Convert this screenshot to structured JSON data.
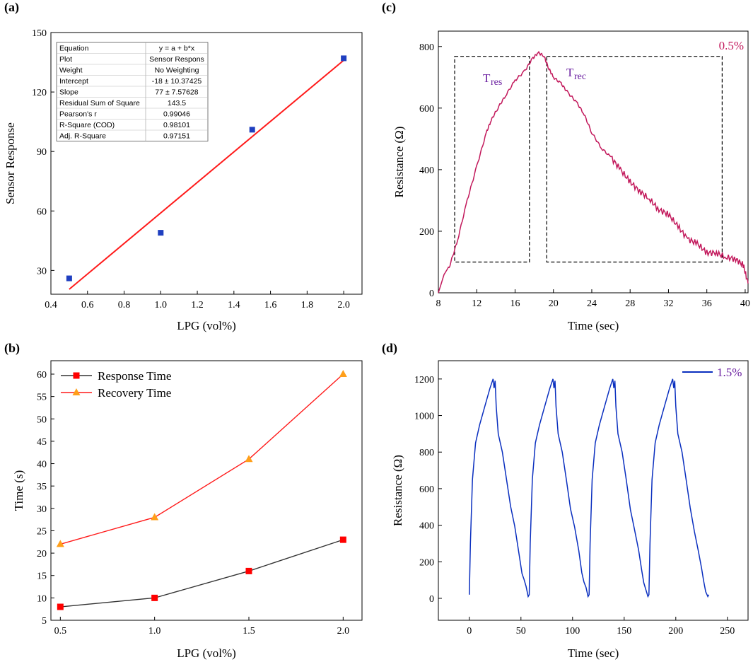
{
  "colors": {
    "blue": "#1f3fc0",
    "red": "#ff1a1a",
    "crimson": "#c2185b",
    "purple": "#6a1fa0",
    "navy": "#0a2fbf",
    "dark": "#333333",
    "orange": "#ff9f1a",
    "sq_red": "#ff0000"
  },
  "chart_data": [
    {
      "panel": "(a)",
      "type": "scatter",
      "xlabel": "LPG (vol%)",
      "ylabel": "Sensor Response",
      "xlim": [
        0.4,
        2.1
      ],
      "ylim": [
        18,
        150
      ],
      "xticks": [
        0.4,
        0.6,
        0.8,
        1.0,
        1.2,
        1.4,
        1.6,
        1.8,
        2.0
      ],
      "xtick_labels": [
        "0.4",
        "0.6",
        "0.8",
        "1.0",
        "1.2",
        "1.4",
        "1.6",
        "1.8",
        "2.0"
      ],
      "yticks": [
        30,
        60,
        90,
        120,
        150
      ],
      "ytick_labels": [
        "30",
        "60",
        "90",
        "120",
        "150"
      ],
      "points": {
        "x": [
          0.5,
          1.0,
          1.5,
          2.0
        ],
        "y": [
          26,
          49,
          101,
          137
        ]
      },
      "fit": {
        "intercept": -18,
        "slope": 77,
        "x": [
          0.5,
          2.0
        ]
      },
      "table": [
        [
          "Equation",
          "y = a + b*x"
        ],
        [
          "Plot",
          "Sensor Respons"
        ],
        [
          "Weight",
          "No Weighting"
        ],
        [
          "Intercept",
          "-18 ± 10.37425"
        ],
        [
          "Slope",
          "77 ± 7.57628"
        ],
        [
          "Residual Sum of Square",
          "143.5"
        ],
        [
          "Pearson's r",
          "0.99046"
        ],
        [
          "R-Square (COD)",
          "0.98101"
        ],
        [
          "Adj. R-Square",
          "0.97151"
        ]
      ]
    },
    {
      "panel": "(b)",
      "type": "line",
      "xlabel": "LPG (vol%)",
      "ylabel": "Time (s)",
      "xlim": [
        0.45,
        2.1
      ],
      "ylim": [
        5,
        63
      ],
      "xticks": [
        0.5,
        1.0,
        1.5,
        2.0
      ],
      "xtick_labels": [
        "0.5",
        "1.0",
        "1.5",
        "2.0"
      ],
      "yticks": [
        5,
        10,
        15,
        20,
        25,
        30,
        35,
        40,
        45,
        50,
        55,
        60
      ],
      "ytick_labels": [
        "5",
        "10",
        "15",
        "20",
        "25",
        "30",
        "35",
        "40",
        "45",
        "50",
        "55",
        "60"
      ],
      "x": [
        0.5,
        1.0,
        1.5,
        2.0
      ],
      "series": [
        {
          "name": "Response Time",
          "values": [
            8,
            10,
            16,
            23
          ]
        },
        {
          "name": "Recovery Time",
          "values": [
            22,
            28,
            41,
            60
          ]
        }
      ],
      "legend": "top-left"
    },
    {
      "panel": "(c)",
      "type": "line",
      "xlabel": "Time (sec)",
      "ylabel": "Resistance (Ω)",
      "xlim": [
        8,
        40.3
      ],
      "ylim": [
        0,
        850
      ],
      "xticks": [
        8,
        12,
        16,
        20,
        24,
        28,
        32,
        36,
        40
      ],
      "xtick_labels": [
        "8",
        "12",
        "16",
        "20",
        "24",
        "28",
        "32",
        "36",
        "40"
      ],
      "yticks": [
        0,
        200,
        400,
        600,
        800
      ],
      "ytick_labels": [
        "0",
        "200",
        "400",
        "600",
        "800"
      ],
      "legend_label": "0.5%",
      "annotations": {
        "t_res": "T",
        "t_res_sub": "res",
        "t_rec": "T",
        "t_rec_sub": "rec"
      },
      "series_points": [
        [
          8.0,
          0
        ],
        [
          8.6,
          60
        ],
        [
          9.2,
          90
        ],
        [
          10.0,
          170
        ],
        [
          11.0,
          300
        ],
        [
          12.0,
          410
        ],
        [
          13.0,
          520
        ],
        [
          13.5,
          560
        ],
        [
          14.2,
          600
        ],
        [
          15.0,
          640
        ],
        [
          16.0,
          690
        ],
        [
          17.0,
          720
        ],
        [
          17.8,
          760
        ],
        [
          18.4,
          780
        ],
        [
          19.0,
          770
        ],
        [
          19.5,
          730
        ],
        [
          20.0,
          700
        ],
        [
          20.8,
          680
        ],
        [
          21.5,
          650
        ],
        [
          22.4,
          620
        ],
        [
          23.2,
          580
        ],
        [
          24.0,
          520
        ],
        [
          25.0,
          470
        ],
        [
          26.0,
          440
        ],
        [
          27.0,
          400
        ],
        [
          28.0,
          360
        ],
        [
          29.0,
          330
        ],
        [
          30.0,
          305
        ],
        [
          31.0,
          270
        ],
        [
          32.0,
          255
        ],
        [
          33.0,
          215
        ],
        [
          34.0,
          175
        ],
        [
          35.0,
          160
        ],
        [
          36.0,
          130
        ],
        [
          37.0,
          130
        ],
        [
          38.0,
          115
        ],
        [
          39.0,
          110
        ],
        [
          39.8,
          90
        ],
        [
          40.3,
          30
        ]
      ],
      "boxes": [
        {
          "x": [
            9.7,
            17.5
          ],
          "y": [
            100,
            768
          ]
        },
        {
          "x": [
            19.3,
            37.6
          ],
          "y": [
            100,
            768
          ]
        }
      ]
    },
    {
      "panel": "(d)",
      "type": "line",
      "xlabel": "Time (sec)",
      "ylabel": "Resistance (Ω)",
      "xlim": [
        -30,
        270
      ],
      "ylim": [
        -120,
        1300
      ],
      "xticks": [
        0,
        50,
        100,
        150,
        200,
        250
      ],
      "xtick_labels": [
        "0",
        "50",
        "100",
        "150",
        "200",
        "250"
      ],
      "yticks": [
        0,
        200,
        400,
        600,
        800,
        1000,
        1200
      ],
      "ytick_labels": [
        "0",
        "200",
        "400",
        "600",
        "800",
        "1000",
        "1200"
      ],
      "legend_label": "1.5%",
      "cycle_starts": [
        0,
        58,
        116,
        174
      ],
      "cycle_shape": [
        [
          0,
          20
        ],
        [
          1,
          300
        ],
        [
          3,
          650
        ],
        [
          6,
          850
        ],
        [
          10,
          950
        ],
        [
          15,
          1050
        ],
        [
          20,
          1150
        ],
        [
          23,
          1200
        ],
        [
          24,
          1150
        ],
        [
          25,
          1190
        ],
        [
          26,
          1050
        ],
        [
          28,
          900
        ],
        [
          32,
          800
        ],
        [
          36,
          650
        ],
        [
          40,
          500
        ],
        [
          44,
          380
        ],
        [
          48,
          250
        ],
        [
          51,
          150
        ],
        [
          53,
          100
        ],
        [
          55,
          50
        ],
        [
          57,
          10
        ],
        [
          58,
          20
        ]
      ]
    }
  ]
}
